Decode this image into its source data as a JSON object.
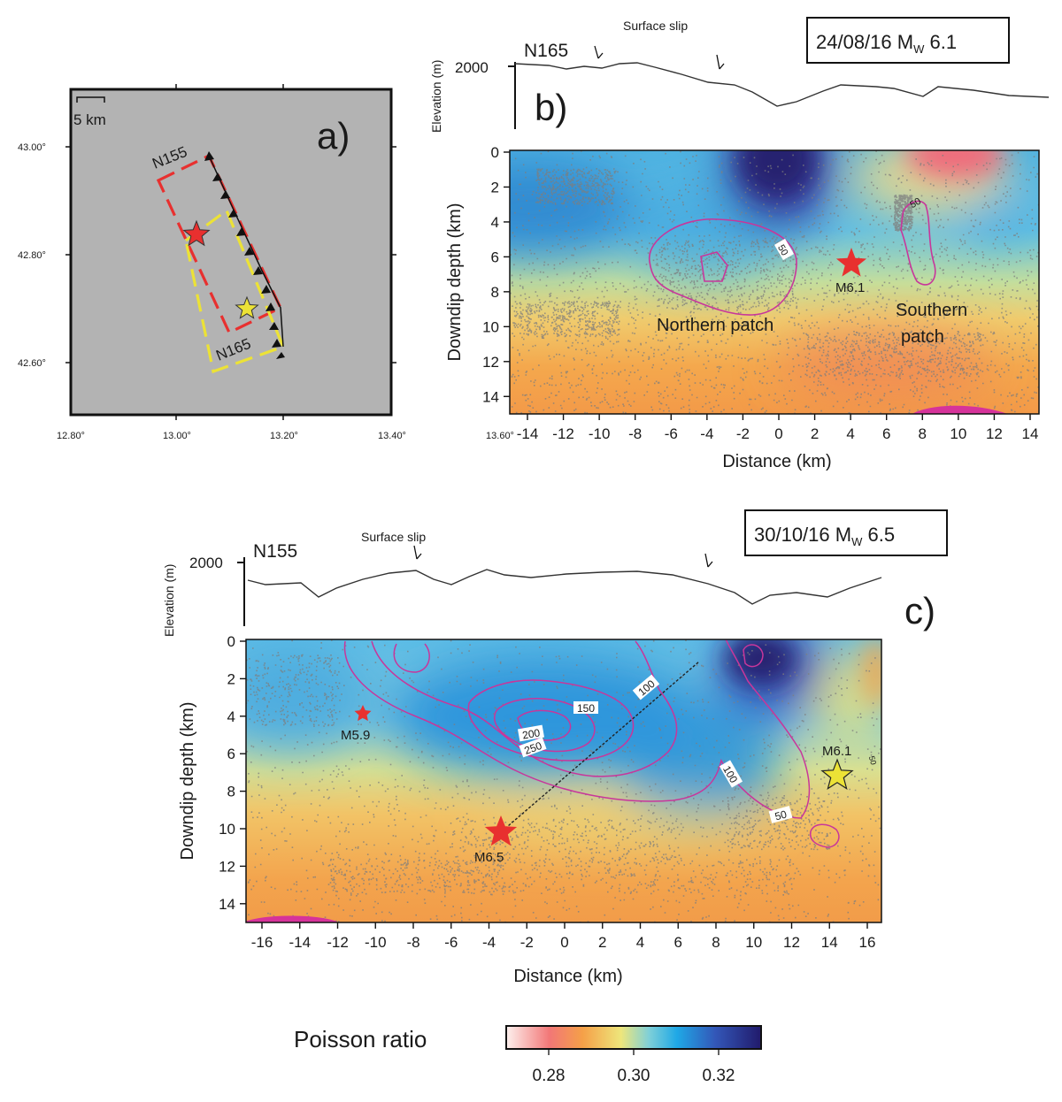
{
  "panel_a": {
    "label": "a)",
    "scale_label": "5 km",
    "lat_ticks": [
      "43.00°",
      "42.80°",
      "42.60°"
    ],
    "lon_ticks": [
      "12.80°",
      "13.00°",
      "13.20°",
      "13.40°",
      "13.60°"
    ],
    "profile_n155": "N155",
    "profile_n165": "N165",
    "colors": {
      "red_box": "#e8302f",
      "yellow_box": "#ece236",
      "map_bg": "#b3b3b3"
    }
  },
  "panel_b": {
    "label": "b)",
    "date": "24/08/16 M",
    "date_sub": "W",
    "date_mag": " 6.1",
    "profile": "N165",
    "surface_slip": "Surface slip",
    "elev_label": "Elevation (m)",
    "elev_tick": "2000",
    "ylabel": "Downdip depth (km)",
    "xlabel": "Distance (km)",
    "x_ticks": [
      "-14",
      "-12",
      "-10",
      "-8",
      "-6",
      "-4",
      "-2",
      "0",
      "2",
      "4",
      "6",
      "8",
      "10",
      "12",
      "14"
    ],
    "y_ticks": [
      "0",
      "2",
      "4",
      "6",
      "8",
      "10",
      "12",
      "14"
    ],
    "contour_labels": [
      "50",
      "50"
    ],
    "event_label": "M6.1",
    "northern_patch": "Northern patch",
    "southern_patch_1": "Southern",
    "southern_patch_2": "patch"
  },
  "panel_c": {
    "label": "c)",
    "date": "30/10/16 M",
    "date_sub": "W",
    "date_mag": " 6.5",
    "profile": "N155",
    "surface_slip": "Surface slip",
    "elev_label": "Elevation (m)",
    "elev_tick": "2000",
    "ylabel": "Downdip depth (km)",
    "xlabel": "Distance (km)",
    "x_ticks": [
      "-16",
      "-14",
      "-12",
      "-10",
      "-8",
      "-6",
      "-4",
      "-2",
      "0",
      "2",
      "4",
      "6",
      "8",
      "10",
      "12",
      "14",
      "16"
    ],
    "y_ticks": [
      "0",
      "2",
      "4",
      "6",
      "8",
      "10",
      "12",
      "14"
    ],
    "contour_labels": [
      "200",
      "150",
      "100",
      "250",
      "100",
      "50",
      "50"
    ],
    "event_labels": [
      "M5.9",
      "M6.5",
      "M6.1"
    ]
  },
  "colorbar": {
    "title": "Poisson ratio",
    "ticks": [
      "0.28",
      "0.30",
      "0.32"
    ],
    "range": [
      0.27,
      0.33
    ]
  }
}
